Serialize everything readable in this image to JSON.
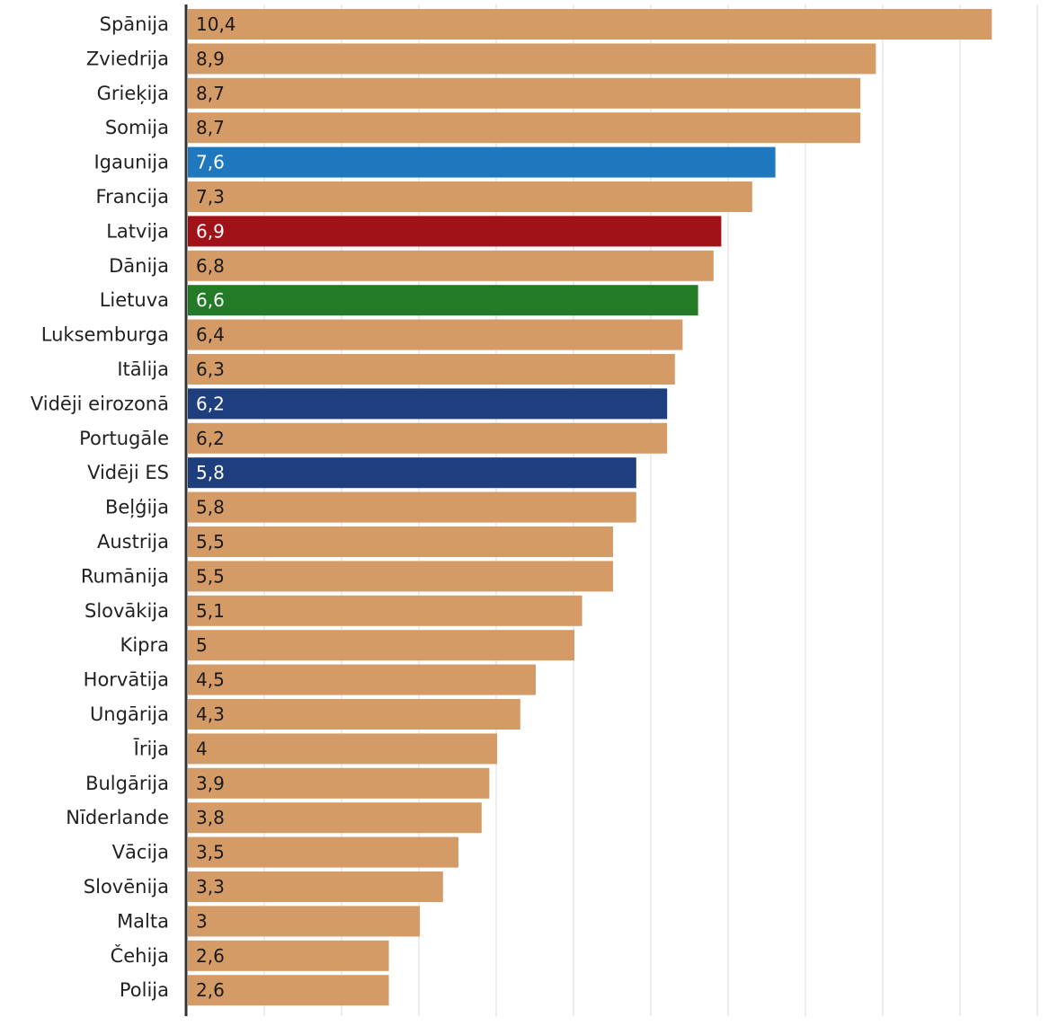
{
  "chart_data": {
    "type": "bar",
    "orientation": "horizontal",
    "categories": [
      "Spānija",
      "Zviedrija",
      "Grieķija",
      "Somija",
      "Igaunija",
      "Francija",
      "Latvija",
      "Dānija",
      "Lietuva",
      "Luksemburga",
      "Itālija",
      "Vidēji eirozonā",
      "Portugāle",
      "Vidēji ES",
      "Beļģija",
      "Austrija",
      "Rumānija",
      "Slovākija",
      "Kipra",
      "Horvātija",
      "Ungārija",
      "Īrija",
      "Bulgārija",
      "Nīderlande",
      "Vācija",
      "Slovēnija",
      "Malta",
      "Čehija",
      "Polija"
    ],
    "values": [
      10.4,
      8.9,
      8.7,
      8.7,
      7.6,
      7.3,
      6.9,
      6.8,
      6.6,
      6.4,
      6.3,
      6.2,
      6.2,
      5.8,
      5.8,
      5.5,
      5.5,
      5.1,
      5,
      4.5,
      4.3,
      4,
      3.9,
      3.8,
      3.5,
      3.3,
      3,
      2.6,
      2.6
    ],
    "value_labels": [
      "10,4",
      "8,9",
      "8,7",
      "8,7",
      "7,6",
      "7,3",
      "6,9",
      "6,8",
      "6,6",
      "6,4",
      "6,3",
      "6,2",
      "6,2",
      "5,8",
      "5,8",
      "5,5",
      "5,5",
      "5,1",
      "5",
      "4,5",
      "4,3",
      "4",
      "3,9",
      "3,8",
      "3,5",
      "3,3",
      "3",
      "2,6",
      "2,6"
    ],
    "highlights": {
      "Igaunija": "#1f77bd",
      "Latvija": "#a01218",
      "Lietuva": "#237b27",
      "Vidēji eirozonā": "#1f3e7e",
      "Vidēji ES": "#1f3e7e"
    },
    "default_color": "#d59b66",
    "highlight_text_color": "#ffffff",
    "default_text_color": "#1a1a1a",
    "xlim": [
      0,
      11
    ],
    "grid": true,
    "title": "",
    "xlabel": "",
    "ylabel": ""
  }
}
